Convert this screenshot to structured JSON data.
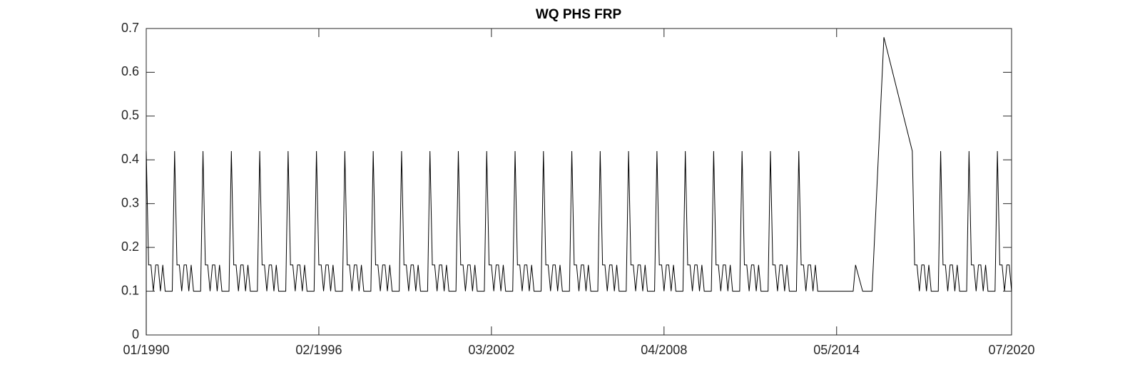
{
  "chart_data": {
    "type": "line",
    "title": "WQ PHS FRP",
    "x": [
      "01/1990",
      "01/1990",
      "02/1990",
      "03/1990",
      "04/1990",
      "05/1990",
      "06/1990",
      "07/1990",
      "08/1990",
      "09/1990",
      "12/1990",
      "01/1991",
      "02/1991",
      "03/1991",
      "04/1991",
      "05/1991",
      "06/1991",
      "07/1991",
      "08/1991",
      "09/1991",
      "12/1991",
      "01/1992",
      "02/1992",
      "03/1992",
      "04/1992",
      "05/1992",
      "06/1992",
      "07/1992",
      "08/1992",
      "09/1992",
      "12/1992",
      "01/1993",
      "02/1993",
      "03/1993",
      "04/1993",
      "05/1993",
      "06/1993",
      "07/1993",
      "08/1993",
      "09/1993",
      "12/1993",
      "01/1994",
      "02/1994",
      "03/1994",
      "04/1994",
      "05/1994",
      "06/1994",
      "07/1994",
      "08/1994",
      "09/1994",
      "12/1994",
      "01/1995",
      "02/1995",
      "03/1995",
      "04/1995",
      "05/1995",
      "06/1995",
      "07/1995",
      "08/1995",
      "09/1995",
      "12/1995",
      "01/1996",
      "02/1996",
      "03/1996",
      "04/1996",
      "05/1996",
      "06/1996",
      "07/1996",
      "08/1996",
      "09/1996",
      "12/1996",
      "01/1997",
      "02/1997",
      "03/1997",
      "04/1997",
      "05/1997",
      "06/1997",
      "07/1997",
      "08/1997",
      "09/1997",
      "12/1997",
      "01/1998",
      "02/1998",
      "03/1998",
      "04/1998",
      "05/1998",
      "06/1998",
      "07/1998",
      "08/1998",
      "09/1998",
      "12/1998",
      "01/1999",
      "02/1999",
      "03/1999",
      "04/1999",
      "05/1999",
      "06/1999",
      "07/1999",
      "08/1999",
      "09/1999",
      "12/1999",
      "01/2000",
      "02/2000",
      "03/2000",
      "04/2000",
      "05/2000",
      "06/2000",
      "07/2000",
      "08/2000",
      "09/2000",
      "12/2000",
      "01/2001",
      "02/2001",
      "03/2001",
      "04/2001",
      "05/2001",
      "06/2001",
      "07/2001",
      "08/2001",
      "09/2001",
      "12/2001",
      "01/2002",
      "02/2002",
      "03/2002",
      "04/2002",
      "05/2002",
      "06/2002",
      "07/2002",
      "08/2002",
      "09/2002",
      "12/2002",
      "01/2003",
      "02/2003",
      "03/2003",
      "04/2003",
      "05/2003",
      "06/2003",
      "07/2003",
      "08/2003",
      "09/2003",
      "12/2003",
      "01/2004",
      "02/2004",
      "03/2004",
      "04/2004",
      "05/2004",
      "06/2004",
      "07/2004",
      "08/2004",
      "09/2004",
      "12/2004",
      "01/2005",
      "02/2005",
      "03/2005",
      "04/2005",
      "05/2005",
      "06/2005",
      "07/2005",
      "08/2005",
      "09/2005",
      "12/2005",
      "01/2006",
      "02/2006",
      "03/2006",
      "04/2006",
      "05/2006",
      "06/2006",
      "07/2006",
      "08/2006",
      "09/2006",
      "12/2006",
      "01/2007",
      "02/2007",
      "03/2007",
      "04/2007",
      "05/2007",
      "06/2007",
      "07/2007",
      "08/2007",
      "09/2007",
      "12/2007",
      "01/2008",
      "02/2008",
      "03/2008",
      "04/2008",
      "05/2008",
      "06/2008",
      "07/2008",
      "08/2008",
      "09/2008",
      "12/2008",
      "01/2009",
      "02/2009",
      "03/2009",
      "04/2009",
      "05/2009",
      "06/2009",
      "07/2009",
      "08/2009",
      "09/2009",
      "12/2009",
      "01/2010",
      "02/2010",
      "03/2010",
      "04/2010",
      "05/2010",
      "06/2010",
      "07/2010",
      "08/2010",
      "09/2010",
      "12/2010",
      "01/2011",
      "02/2011",
      "03/2011",
      "04/2011",
      "05/2011",
      "06/2011",
      "07/2011",
      "08/2011",
      "09/2011",
      "12/2011",
      "01/2012",
      "02/2012",
      "03/2012",
      "04/2012",
      "05/2012",
      "06/2012",
      "07/2012",
      "08/2012",
      "09/2012",
      "12/2012",
      "01/2013",
      "02/2013",
      "03/2013",
      "04/2013",
      "05/2013",
      "06/2013",
      "07/2013",
      "08/2013",
      "09/2013",
      "12/2013",
      "12/2014",
      "01/2015",
      "04/2015",
      "08/2015",
      "01/2016",
      "01/2017",
      "02/2017",
      "03/2017",
      "04/2017",
      "05/2017",
      "06/2017",
      "07/2017",
      "08/2017",
      "09/2017",
      "12/2017",
      "01/2018",
      "02/2018",
      "03/2018",
      "04/2018",
      "05/2018",
      "06/2018",
      "07/2018",
      "08/2018",
      "09/2018",
      "12/2018",
      "01/2019",
      "02/2019",
      "03/2019",
      "04/2019",
      "05/2019",
      "06/2019",
      "07/2019",
      "08/2019",
      "09/2019",
      "12/2019",
      "01/2020",
      "02/2020",
      "03/2020",
      "04/2020",
      "05/2020",
      "06/2020",
      "07/2020"
    ],
    "series": [
      {
        "color": "#000000",
        "values": [
          0,
          0.42,
          0.16,
          0.16,
          0.1,
          0.16,
          0.16,
          0.1,
          0.16,
          0.1,
          0.1,
          0.42,
          0.16,
          0.16,
          0.1,
          0.16,
          0.16,
          0.1,
          0.16,
          0.1,
          0.1,
          0.42,
          0.16,
          0.16,
          0.1,
          0.16,
          0.16,
          0.1,
          0.16,
          0.1,
          0.1,
          0.42,
          0.16,
          0.16,
          0.1,
          0.16,
          0.16,
          0.1,
          0.16,
          0.1,
          0.1,
          0.42,
          0.16,
          0.16,
          0.1,
          0.16,
          0.16,
          0.1,
          0.16,
          0.1,
          0.1,
          0.42,
          0.16,
          0.16,
          0.1,
          0.16,
          0.16,
          0.1,
          0.16,
          0.1,
          0.1,
          0.42,
          0.16,
          0.16,
          0.1,
          0.16,
          0.16,
          0.1,
          0.16,
          0.1,
          0.1,
          0.42,
          0.16,
          0.16,
          0.1,
          0.16,
          0.16,
          0.1,
          0.16,
          0.1,
          0.1,
          0.42,
          0.16,
          0.16,
          0.1,
          0.16,
          0.16,
          0.1,
          0.16,
          0.1,
          0.1,
          0.42,
          0.16,
          0.16,
          0.1,
          0.16,
          0.16,
          0.1,
          0.16,
          0.1,
          0.1,
          0.42,
          0.16,
          0.16,
          0.1,
          0.16,
          0.16,
          0.1,
          0.16,
          0.1,
          0.1,
          0.42,
          0.16,
          0.16,
          0.1,
          0.16,
          0.16,
          0.1,
          0.16,
          0.1,
          0.1,
          0.42,
          0.16,
          0.16,
          0.1,
          0.16,
          0.16,
          0.1,
          0.16,
          0.1,
          0.1,
          0.42,
          0.16,
          0.16,
          0.1,
          0.16,
          0.16,
          0.1,
          0.16,
          0.1,
          0.1,
          0.42,
          0.16,
          0.16,
          0.1,
          0.16,
          0.16,
          0.1,
          0.16,
          0.1,
          0.1,
          0.42,
          0.16,
          0.16,
          0.1,
          0.16,
          0.16,
          0.1,
          0.16,
          0.1,
          0.1,
          0.42,
          0.16,
          0.16,
          0.1,
          0.16,
          0.16,
          0.1,
          0.16,
          0.1,
          0.1,
          0.42,
          0.16,
          0.16,
          0.1,
          0.16,
          0.16,
          0.1,
          0.16,
          0.1,
          0.1,
          0.42,
          0.16,
          0.16,
          0.1,
          0.16,
          0.16,
          0.1,
          0.16,
          0.1,
          0.1,
          0.42,
          0.16,
          0.16,
          0.1,
          0.16,
          0.16,
          0.1,
          0.16,
          0.1,
          0.1,
          0.42,
          0.16,
          0.16,
          0.1,
          0.16,
          0.16,
          0.1,
          0.16,
          0.1,
          0.1,
          0.42,
          0.16,
          0.16,
          0.1,
          0.16,
          0.16,
          0.1,
          0.16,
          0.1,
          0.1,
          0.42,
          0.16,
          0.16,
          0.1,
          0.16,
          0.16,
          0.1,
          0.16,
          0.1,
          0.1,
          0.42,
          0.16,
          0.16,
          0.1,
          0.16,
          0.16,
          0.1,
          0.16,
          0.1,
          0.1,
          0.1,
          0.16,
          0.1,
          0.1,
          0.68,
          0.42,
          0.16,
          0.16,
          0.1,
          0.16,
          0.16,
          0.1,
          0.16,
          0.1,
          0.1,
          0.42,
          0.16,
          0.16,
          0.1,
          0.16,
          0.16,
          0.1,
          0.16,
          0.1,
          0.1,
          0.42,
          0.16,
          0.16,
          0.1,
          0.16,
          0.16,
          0.1,
          0.16,
          0.1,
          0.1,
          0.42,
          0.16,
          0.16,
          0.1,
          0.16,
          0.16,
          0.1
        ]
      }
    ],
    "xlim": [
      "01/1990",
      "07/2020"
    ],
    "xticks": [
      "01/1990",
      "02/1996",
      "03/2002",
      "04/2008",
      "05/2014",
      "07/2020"
    ],
    "ylim": [
      0,
      0.7
    ],
    "yticks": [
      0,
      0.1,
      0.2,
      0.3,
      0.4,
      0.5,
      0.6,
      0.7
    ]
  }
}
